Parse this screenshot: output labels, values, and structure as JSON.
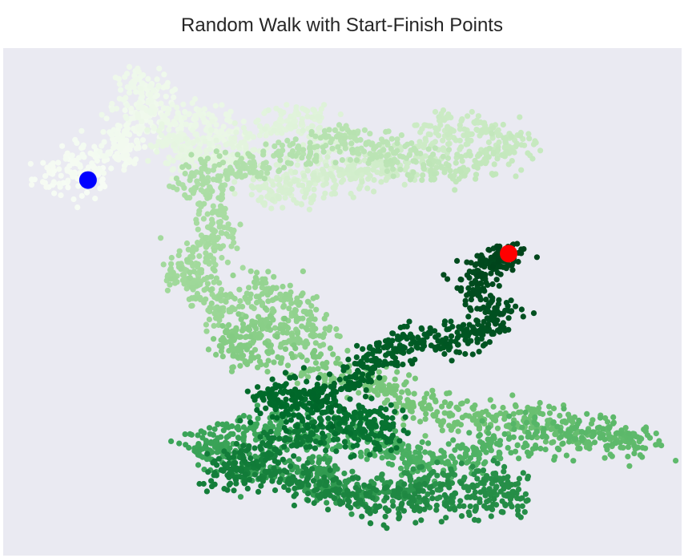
{
  "chart_data": {
    "type": "scatter",
    "title": "Random Walk with Start-Finish Points",
    "xlabel": "",
    "ylabel": "",
    "axes_visible": false,
    "grid": false,
    "background": "#eaeaf2",
    "colormap": "Greens",
    "color_encodes": "step index (light = early, dark = late)",
    "num_steps_approx": 5000,
    "xlim": [
      0,
      100
    ],
    "ylim": [
      0,
      100
    ],
    "path_waypoints": [
      [
        14.5,
        73.5
      ],
      [
        7.0,
        74.5
      ],
      [
        12.0,
        77.5
      ],
      [
        18.5,
        79.5
      ],
      [
        16.5,
        82.5
      ],
      [
        21.0,
        86.0
      ],
      [
        22.5,
        92.5
      ],
      [
        18.0,
        92.0
      ],
      [
        24.0,
        85.0
      ],
      [
        29.0,
        86.0
      ],
      [
        34.5,
        82.0
      ],
      [
        27.0,
        80.0
      ],
      [
        23.5,
        81.5
      ],
      [
        30.5,
        77.0
      ],
      [
        35.0,
        80.5
      ],
      [
        41.0,
        85.5
      ],
      [
        44.5,
        86.5
      ],
      [
        48.5,
        81.0
      ],
      [
        43.5,
        75.5
      ],
      [
        38.0,
        70.5
      ],
      [
        44.0,
        72.5
      ],
      [
        48.5,
        74.5
      ],
      [
        53.5,
        76.5
      ],
      [
        57.0,
        76.0
      ],
      [
        62.5,
        80.0
      ],
      [
        65.5,
        85.5
      ],
      [
        70.5,
        82.5
      ],
      [
        76.5,
        81.0
      ],
      [
        71.0,
        78.0
      ],
      [
        65.0,
        75.0
      ],
      [
        60.0,
        78.0
      ],
      [
        55.0,
        80.5
      ],
      [
        50.0,
        82.5
      ],
      [
        44.0,
        79.5
      ],
      [
        38.0,
        77.0
      ],
      [
        33.5,
        76.0
      ],
      [
        28.0,
        75.0
      ],
      [
        30.5,
        70.0
      ],
      [
        32.0,
        63.5
      ],
      [
        30.5,
        59.5
      ],
      [
        25.5,
        56.0
      ],
      [
        29.0,
        53.5
      ],
      [
        31.5,
        47.5
      ],
      [
        37.0,
        53.0
      ],
      [
        42.5,
        50.5
      ],
      [
        46.0,
        44.5
      ],
      [
        41.5,
        42.5
      ],
      [
        37.0,
        45.5
      ],
      [
        33.0,
        42.5
      ],
      [
        35.0,
        39.5
      ],
      [
        45.0,
        37.5
      ],
      [
        51.5,
        35.0
      ],
      [
        56.5,
        33.5
      ],
      [
        61.0,
        29.5
      ],
      [
        67.0,
        28.0
      ],
      [
        73.0,
        26.5
      ],
      [
        78.0,
        28.0
      ],
      [
        83.0,
        24.0
      ],
      [
        90.0,
        23.5
      ],
      [
        94.5,
        21.5
      ],
      [
        87.0,
        24.5
      ],
      [
        80.0,
        23.5
      ],
      [
        72.5,
        21.5
      ],
      [
        68.0,
        19.0
      ],
      [
        61.5,
        18.0
      ],
      [
        58.0,
        21.0
      ],
      [
        52.5,
        24.0
      ],
      [
        46.0,
        22.5
      ],
      [
        40.0,
        25.5
      ],
      [
        34.0,
        24.0
      ],
      [
        28.5,
        21.5
      ],
      [
        33.5,
        18.5
      ],
      [
        40.0,
        16.5
      ],
      [
        46.5,
        17.5
      ],
      [
        47.5,
        13.0
      ],
      [
        53.0,
        12.0
      ],
      [
        59.0,
        14.0
      ],
      [
        64.5,
        13.5
      ],
      [
        71.5,
        14.5
      ],
      [
        76.0,
        12.5
      ],
      [
        69.5,
        10.0
      ],
      [
        62.0,
        11.5
      ],
      [
        56.0,
        10.0
      ],
      [
        49.5,
        12.5
      ],
      [
        44.5,
        15.0
      ],
      [
        38.0,
        16.5
      ],
      [
        32.0,
        15.5
      ],
      [
        35.5,
        20.0
      ],
      [
        42.0,
        22.5
      ],
      [
        48.0,
        25.0
      ],
      [
        53.5,
        22.5
      ],
      [
        56.5,
        26.0
      ],
      [
        50.0,
        28.5
      ],
      [
        44.0,
        28.0
      ],
      [
        38.5,
        30.5
      ],
      [
        42.5,
        33.0
      ],
      [
        48.0,
        31.5
      ],
      [
        53.0,
        36.0
      ],
      [
        55.5,
        39.0
      ],
      [
        58.5,
        41.5
      ],
      [
        62.5,
        42.5
      ],
      [
        67.5,
        43.0
      ],
      [
        71.5,
        44.5
      ],
      [
        73.0,
        48.0
      ],
      [
        69.0,
        52.5
      ],
      [
        71.0,
        56.5
      ],
      [
        73.5,
        58.0
      ],
      [
        74.5,
        59.5
      ]
    ],
    "series": [
      {
        "label": "start",
        "x": [
          12.5
        ],
        "y": [
          74.0
        ],
        "color": "#0000ff"
      },
      {
        "label": "finish",
        "x": [
          74.5
        ],
        "y": [
          59.5
        ],
        "color": "#ff0000"
      }
    ]
  }
}
